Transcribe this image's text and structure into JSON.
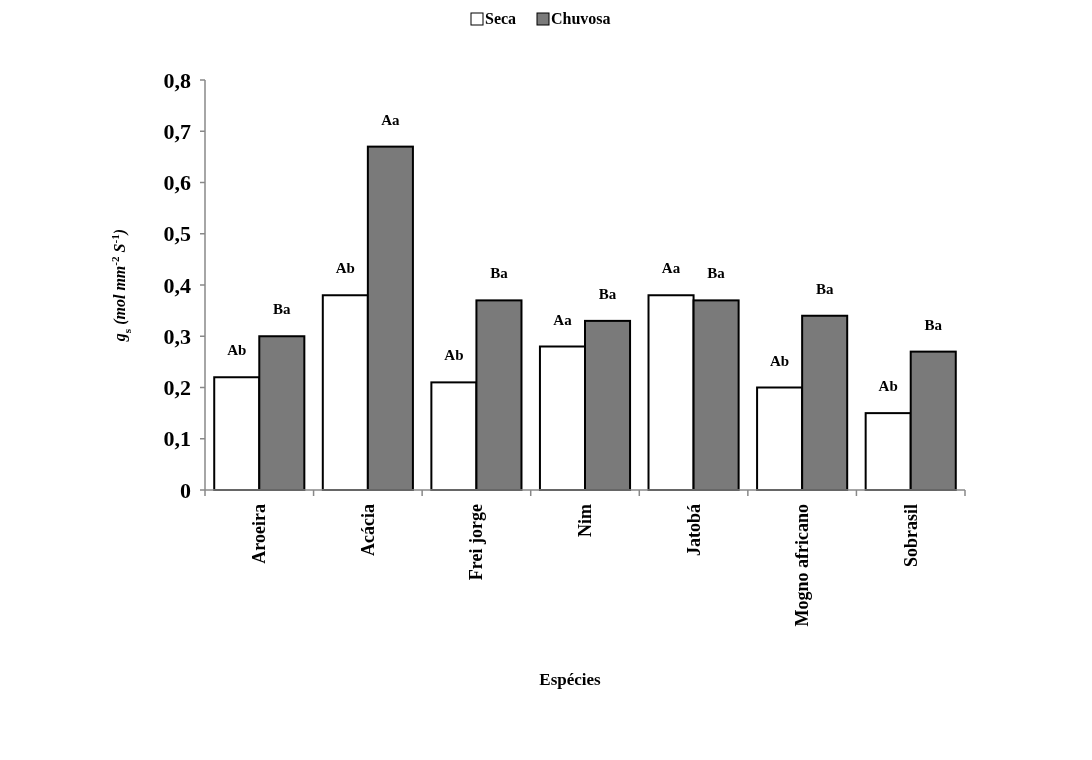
{
  "chart_data": {
    "type": "bar",
    "xlabel": "Espécies",
    "ylabel": "g$_{s}$ (mol mm$^{-2}$ S$^{-1}$)",
    "categories": [
      "Aroeira",
      "Acácia",
      "Frei jorge",
      "Nim",
      "Jatobá",
      "Mogno africano",
      "Sobrasil"
    ],
    "series": [
      {
        "name": "Seca",
        "color": "#ffffff",
        "values": [
          0.22,
          0.38,
          0.21,
          0.28,
          0.38,
          0.2,
          0.15
        ],
        "value_labels": [
          "Ab",
          "Ab",
          "Ab",
          "Aa",
          "Aa",
          "Ab",
          "Ab"
        ]
      },
      {
        "name": "Chuvosa",
        "color": "#7a7a7a",
        "values": [
          0.3,
          0.67,
          0.37,
          0.33,
          0.37,
          0.34,
          0.27
        ],
        "value_labels": [
          "Ba",
          "Aa",
          "Ba",
          "Ba",
          "Ba",
          "Ba",
          "Ba"
        ]
      }
    ],
    "ylim": [
      0,
      0.8
    ],
    "yticks": [
      0,
      {
        "value": 0.1,
        "label": "0,1"
      },
      {
        "value": 0.2,
        "label": "0,2"
      },
      {
        "value": 0.3,
        "label": "0,3"
      },
      {
        "value": 0.4,
        "label": "0,4"
      },
      {
        "value": 0.5,
        "label": "0,5"
      },
      {
        "value": 0.6,
        "label": "0,6"
      },
      {
        "value": 0.7,
        "label": "0,7"
      },
      {
        "value": 0.8,
        "label": "0,8"
      }
    ],
    "grid": false,
    "legend": "top"
  }
}
